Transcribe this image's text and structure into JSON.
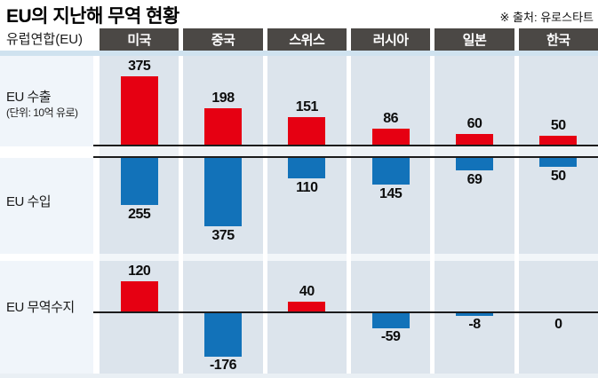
{
  "title": "EU의 지난해 무역 현황",
  "source": "※ 출처: 유로스타트",
  "header": {
    "region_label": "유럽연합(EU)",
    "countries": [
      "미국",
      "중국",
      "스위스",
      "러시아",
      "일본",
      "한국"
    ]
  },
  "sections": {
    "exports": {
      "label": "EU 수출",
      "unit_note": "(단위: 10억 유로)"
    },
    "imports": {
      "label": "EU 수입"
    },
    "balance": {
      "label": "EU 무역수지"
    }
  },
  "colors": {
    "export_bar": "#e60012",
    "import_bar": "#1272b9",
    "header_bg": "#4b4845",
    "column_bg": "#dce4ec",
    "left_bg": "#f0f5fa",
    "strip_bg": "#cfe2ef",
    "band_bg": "#edf1f5",
    "gap_bg": "#f2f6f9",
    "bottom_strip_bg": "#e9eff4",
    "line": "#1c1c1c"
  },
  "chart_data": {
    "type": "bar",
    "title": "EU의 지난해 무역 현황",
    "source": "유로스타트",
    "unit": "10억 유로",
    "categories": [
      "미국",
      "중국",
      "스위스",
      "러시아",
      "일본",
      "한국"
    ],
    "legend_position": "none",
    "grid": false,
    "series": [
      {
        "name": "EU 수출",
        "direction": "up",
        "color": "#e60012",
        "values": [
          375,
          198,
          151,
          86,
          60,
          50
        ]
      },
      {
        "name": "EU 수입",
        "direction": "down",
        "color": "#1272b9",
        "values": [
          255,
          375,
          110,
          145,
          69,
          50
        ]
      },
      {
        "name": "EU 무역수지",
        "direction": "signed",
        "positive_color": "#e60012",
        "negative_color": "#1272b9",
        "values": [
          120,
          -176,
          40,
          -59,
          -8,
          0
        ]
      }
    ]
  }
}
